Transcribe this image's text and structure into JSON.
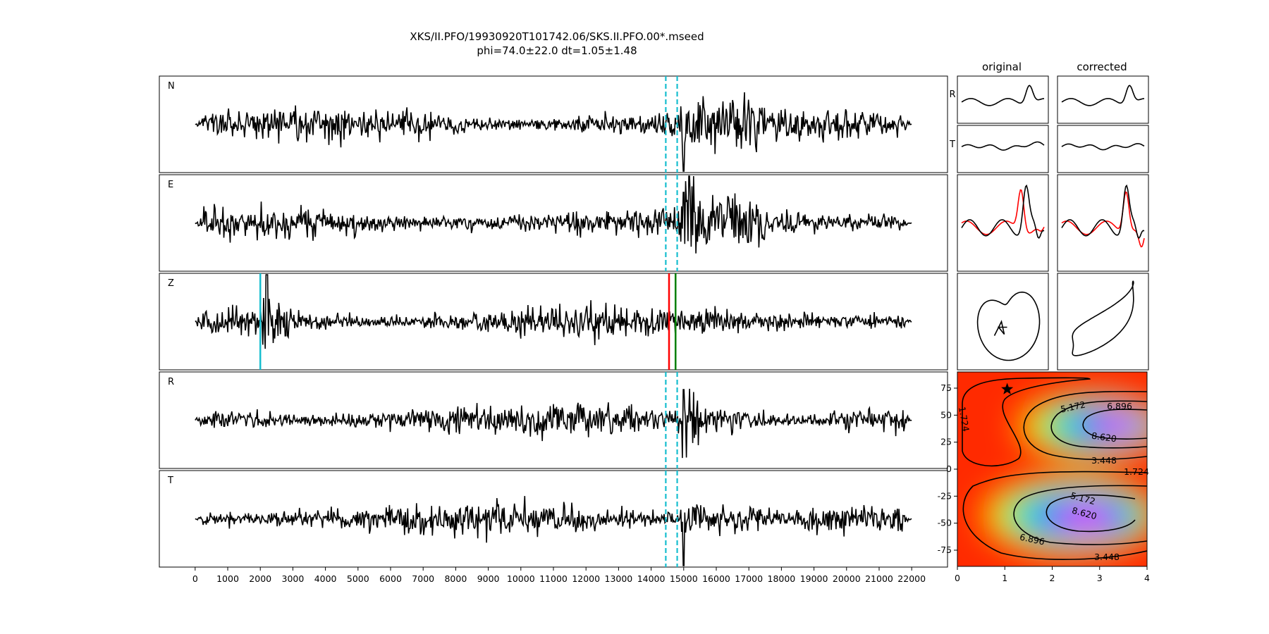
{
  "title": {
    "line1": "XKS/II.PFO/19930920T101742.06/SKS.II.PFO.00*.mseed",
    "line2": "phi=74.0±22.0 dt=1.05±1.48"
  },
  "chart_data": [
    {
      "type": "line",
      "name": "waveforms",
      "channels": [
        "N",
        "E",
        "Z",
        "R",
        "T"
      ],
      "x_ticks": [
        0,
        1000,
        2000,
        3000,
        4000,
        5000,
        6000,
        7000,
        8000,
        9000,
        10000,
        11000,
        12000,
        13000,
        14000,
        15000,
        16000,
        17000,
        18000,
        19000,
        20000,
        21000,
        22000
      ],
      "x_range": [
        -1100,
        23100
      ],
      "window_start": 14450,
      "window_end": 14800,
      "cyan_pick": 2000,
      "red_pick": 14550,
      "green_pick": 14750,
      "colors": {
        "trace": "#000000",
        "window": "#17becf",
        "cyan_pick": "#17becf",
        "red_pick": "#ff0000",
        "green_pick": "#008000"
      }
    },
    {
      "type": "line",
      "name": "particle_motion",
      "column_titles": [
        "original",
        "corrected"
      ],
      "row_labels": [
        "R",
        "T"
      ],
      "colors": {
        "trace": "#000000",
        "overlay": "#ff0000"
      }
    },
    {
      "type": "heatmap",
      "name": "grid_search",
      "x_ticks": [
        0,
        1,
        2,
        3,
        4
      ],
      "y_ticks": [
        75,
        50,
        25,
        0,
        -25,
        -50,
        -75
      ],
      "xlim": [
        0,
        4
      ],
      "ylim": [
        -90,
        90
      ],
      "best": {
        "dt": 1.05,
        "phi": 74.0
      },
      "contour_labels": [
        "1.724",
        "3.448",
        "5.172",
        "6.896",
        "8.620"
      ],
      "colormap": "gist_rainbow"
    }
  ]
}
